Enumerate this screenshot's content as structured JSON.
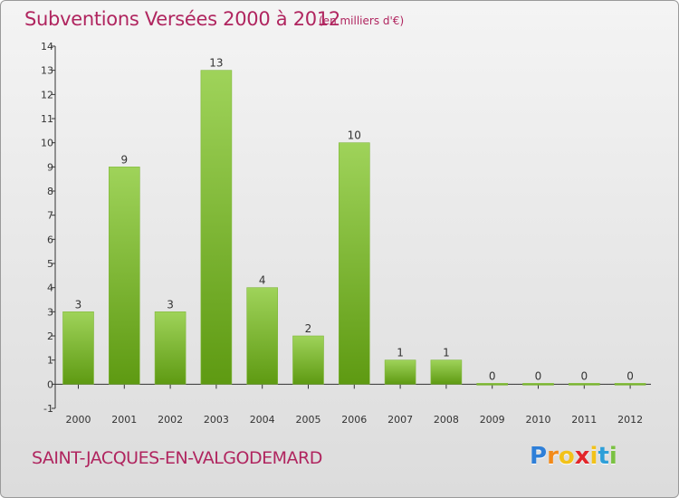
{
  "header": {
    "title": "Subventions Versées 2000 à 2012",
    "units": "(en milliers d'€)"
  },
  "footer": {
    "commune": "SAINT-JACQUES-EN-VALGODEMARD",
    "logo_letters": [
      "P",
      "r",
      "o",
      "x",
      "i",
      "t",
      "i"
    ],
    "logo_colors": [
      "#2e7fd8",
      "#f28a1a",
      "#f2c21a",
      "#e2262a",
      "#f2c21a",
      "#2e9fd8",
      "#7ac142"
    ]
  },
  "colors": {
    "bar_light": "#9fd35a",
    "bar_dark": "#5e9a12",
    "title": "#b0255f",
    "axis": "#333333"
  },
  "chart_data": {
    "type": "bar",
    "title": "Subventions Versées 2000 à 2012",
    "categories": [
      "2000",
      "2001",
      "2002",
      "2003",
      "2004",
      "2005",
      "2006",
      "2007",
      "2008",
      "2009",
      "2010",
      "2011",
      "2012"
    ],
    "values": [
      3,
      9,
      3,
      13,
      4,
      2,
      10,
      1,
      1,
      0,
      0,
      0,
      0
    ],
    "data_labels": [
      "3",
      "9",
      "3",
      "13",
      "4",
      "2",
      "10",
      "1",
      "1",
      "0",
      "0",
      "0",
      "0"
    ],
    "y_ticks": [
      "-1",
      "0",
      "1",
      "2",
      "3",
      "4",
      "5",
      "6",
      "7",
      "8",
      "9",
      "10",
      "11",
      "12",
      "13",
      "14"
    ],
    "ylim": [
      -1,
      14
    ],
    "xlabel": "",
    "ylabel": "",
    "grid": false
  }
}
